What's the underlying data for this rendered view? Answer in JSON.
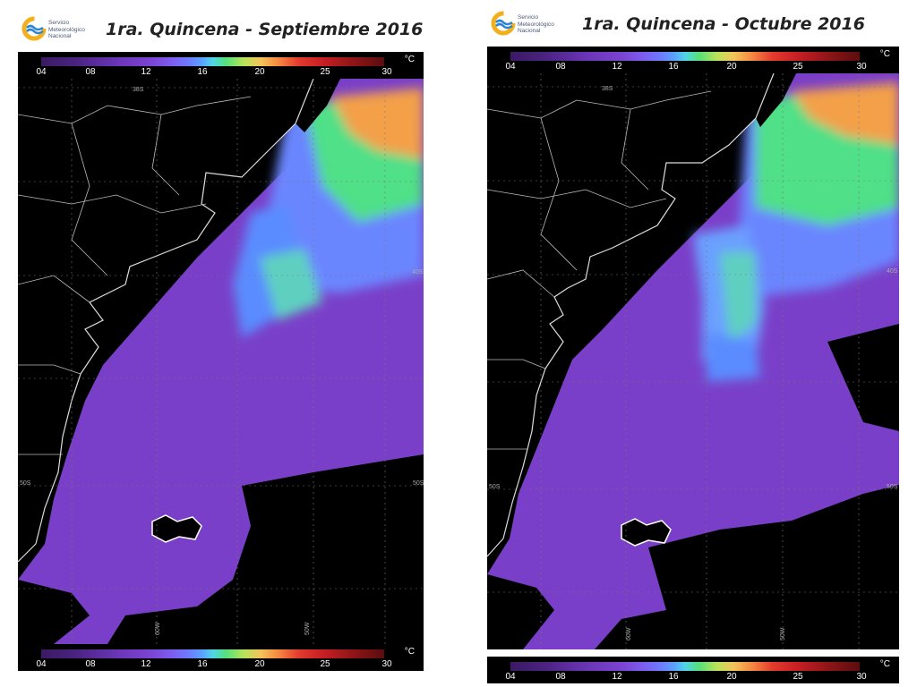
{
  "logo": {
    "line1": "Servicio",
    "line2": "Meteorológico",
    "line3": "Nacional"
  },
  "left": {
    "title": "1ra. Quincena - Septiembre 2016",
    "lat_labels": [
      "38S",
      "40S",
      "50S"
    ],
    "lon_labels": [
      "60W",
      "50W"
    ]
  },
  "right": {
    "title": "1ra. Quincena - Octubre 2016",
    "lat_labels": [
      "38S",
      "40S",
      "50S"
    ],
    "lon_labels": [
      "60W",
      "50W"
    ]
  },
  "colorbar": {
    "unit": "°C",
    "ticks": [
      "04",
      "08",
      "12",
      "16",
      "20",
      "25",
      "30"
    ],
    "range_c": [
      4,
      30
    ]
  },
  "colors": {
    "land": "#000000",
    "cold_sea": "#7a3fc8",
    "mid_sea": "#6a7cff",
    "warm_sea": "#4fe088",
    "hot_sea": "#f39a4a",
    "border": "#c8c8c8"
  }
}
